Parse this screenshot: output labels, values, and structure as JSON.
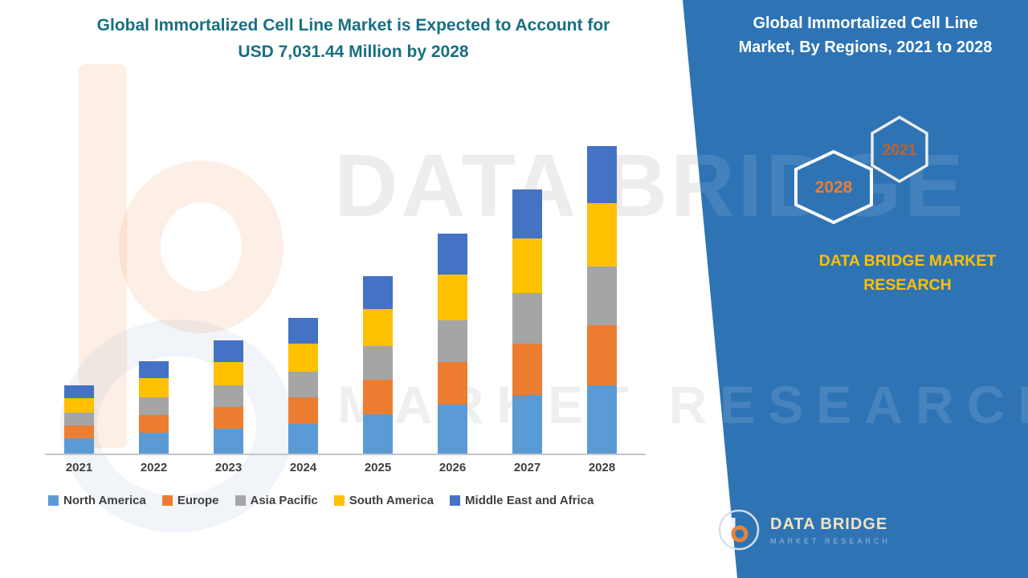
{
  "left": {
    "title_line1": "Global Immortalized Cell Line Market is Expected to Account for",
    "title_line2": "USD 7,031.44 Million by 2028"
  },
  "right_panel": {
    "title_line1": "Global Immortalized Cell Line",
    "title_line2": "Market, By Regions, 2021 to 2028",
    "hex_back_label": "2028",
    "hex_front_label": "2021",
    "brand_line1": "DATA BRIDGE MARKET",
    "brand_line2": "RESEARCH",
    "panel_color": "#2E74B5",
    "brand_color": "#FFC000",
    "hex_2028_color": "#ED7D31",
    "hex_2021_color": "#C0622B"
  },
  "logo": {
    "emblem_letter": "b",
    "name": "DATA BRIDGE",
    "subtitle": "MARKET RESEARCH"
  },
  "watermark": {
    "line1": "DATA BRIDGE",
    "line2": "MARKET RESEARCH"
  },
  "chart_data": {
    "type": "bar",
    "stacked": true,
    "title": "Global Immortalized Cell Line Market, By Regions, 2021 to 2028",
    "unit": "USD Million",
    "categories": [
      "2021",
      "2022",
      "2023",
      "2024",
      "2025",
      "2026",
      "2027",
      "2028"
    ],
    "series": [
      {
        "name": "North America",
        "color": "#5B9BD5",
        "values": [
          345,
          470,
          570,
          685,
          900,
          1115,
          1340,
          1560
        ]
      },
      {
        "name": "Europe",
        "color": "#ED7D31",
        "values": [
          300,
          410,
          500,
          600,
          785,
          975,
          1170,
          1365
        ]
      },
      {
        "name": "Asia Pacific",
        "color": "#A5A5A5",
        "values": [
          295,
          400,
          490,
          590,
          775,
          960,
          1155,
          1345
        ]
      },
      {
        "name": "South America",
        "color": "#FFC000",
        "values": [
          330,
          440,
          535,
          640,
          840,
          1040,
          1250,
          1455
        ]
      },
      {
        "name": "Middle East and Africa",
        "color": "#4472C4",
        "values": [
          295,
          397,
          482,
          577,
          749,
          934,
          1122,
          1306.44
        ]
      }
    ],
    "totals": [
      1565,
      2117,
      2577,
      3092,
      4049,
      5024,
      6037,
      7031.44
    ],
    "annotation_total_2028": 7031.44,
    "ylim": [
      0,
      8800
    ],
    "grid": false,
    "legend_position": "bottom"
  }
}
